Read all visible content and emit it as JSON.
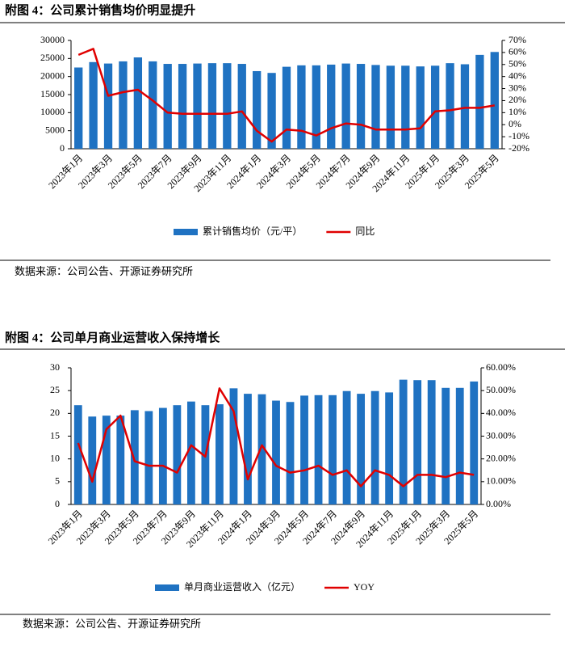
{
  "chart_data": [
    {
      "type": "bar",
      "title": "附图 4：公司累计销售均价明显提升",
      "source": "数据来源：公司公告、开源证券研究所",
      "categories": [
        "2023年1月",
        null,
        "2023年3月",
        null,
        "2023年5月",
        null,
        "2023年7月",
        null,
        "2023年9月",
        null,
        "2023年11月",
        null,
        "2024年1月",
        null,
        "2024年3月",
        null,
        "2024年5月",
        null,
        "2024年7月",
        null,
        "2024年9月",
        null,
        "2024年11月",
        null,
        "2025年1月",
        null,
        "2025年3月",
        null,
        "2025年5月"
      ],
      "series": [
        {
          "name": "累计销售均价（元/平）",
          "type": "bar",
          "color": "#1f72c2",
          "values": [
            22500,
            24000,
            23600,
            24200,
            25300,
            24200,
            23500,
            23500,
            23600,
            23700,
            23700,
            23500,
            21500,
            21000,
            22700,
            23100,
            23100,
            23300,
            23600,
            23500,
            23200,
            23000,
            23000,
            22800,
            23000,
            23700,
            23400,
            26000,
            26800
          ]
        },
        {
          "name": "同比",
          "type": "line",
          "axis": "y2",
          "color": "#e00000",
          "values": [
            58,
            63,
            24,
            27,
            29,
            20,
            10,
            9,
            9,
            9,
            9,
            11,
            -5,
            -14,
            -4,
            -5,
            -9,
            -3,
            1,
            0,
            -4,
            -4,
            -4,
            -3,
            11,
            12,
            14,
            14,
            16
          ]
        }
      ],
      "ylim": [
        0,
        30000
      ],
      "yticks": [
        0,
        5000,
        10000,
        15000,
        20000,
        25000,
        30000
      ],
      "y2lim": [
        -20,
        70
      ],
      "y2ticks": [
        {
          "value": -20,
          "label": "-20%"
        },
        {
          "value": -10,
          "label": "-10%"
        },
        {
          "value": 0,
          "label": "0%"
        },
        {
          "value": 10,
          "label": "10%"
        },
        {
          "value": 20,
          "label": "20%"
        },
        {
          "value": 30,
          "label": "30%"
        },
        {
          "value": 40,
          "label": "40%"
        },
        {
          "value": 50,
          "label": "50%"
        },
        {
          "value": 60,
          "label": "60%"
        },
        {
          "value": 70,
          "label": "70%"
        }
      ]
    },
    {
      "type": "bar",
      "title": "附图 4：公司单月商业运营收入保持增长",
      "source": "数据来源：公司公告、开源证券研究所",
      "categories": [
        "2023年1月",
        null,
        "2023年3月",
        null,
        "2023年5月",
        null,
        "2023年7月",
        null,
        "2023年9月",
        null,
        "2023年11月",
        null,
        "2024年1月",
        null,
        "2024年3月",
        null,
        "2024年5月",
        null,
        "2024年7月",
        null,
        "2024年9月",
        null,
        "2024年11月",
        null,
        "2025年1月",
        null,
        "2025年3月",
        null,
        "2025年5月"
      ],
      "series": [
        {
          "name": "单月商业运营收入（亿元）",
          "type": "bar",
          "color": "#1f72c2",
          "values": [
            21.8,
            19.3,
            19.5,
            19.5,
            20.7,
            20.5,
            21.2,
            21.8,
            22.6,
            21.8,
            22.0,
            25.5,
            24.3,
            24.2,
            22.8,
            22.5,
            23.9,
            24.0,
            24.0,
            24.9,
            24.3,
            24.9,
            24.6,
            27.4,
            27.3,
            27.3,
            25.6,
            25.6,
            27.0
          ]
        },
        {
          "name": "YOY",
          "type": "line",
          "axis": "y2",
          "color": "#e00000",
          "values": [
            27,
            10,
            33,
            39,
            19,
            17,
            17,
            14,
            26,
            21,
            51,
            41,
            11,
            26,
            17,
            14,
            15,
            17,
            13,
            15,
            8,
            15,
            13,
            8,
            13,
            13,
            12,
            14,
            13
          ]
        }
      ],
      "ylim": [
        0,
        30
      ],
      "yticks": [
        0,
        5,
        10,
        15,
        20,
        25,
        30
      ],
      "y2lim": [
        0,
        60
      ],
      "y2ticks": [
        {
          "value": 0,
          "label": "0.00%"
        },
        {
          "value": 10,
          "label": "10.00%"
        },
        {
          "value": 20,
          "label": "20.00%"
        },
        {
          "value": 30,
          "label": "30.00%"
        },
        {
          "value": 40,
          "label": "40.00%"
        },
        {
          "value": 50,
          "label": "50.00%"
        },
        {
          "value": 60,
          "label": "60.00%"
        }
      ]
    }
  ]
}
